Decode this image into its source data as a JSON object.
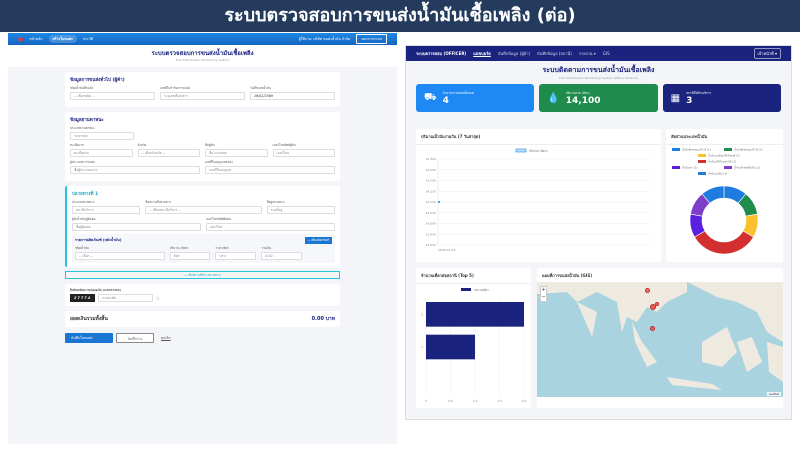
{
  "slide": {
    "title": "ระบบตรวจสอบการขนส่งน้ำมันเชื้อเพลิง (ต่อ)"
  },
  "left": {
    "nav": {
      "items": [
        "หน้าหลัก",
        "สร้างใบขนส่ง",
        "ประวัติ"
      ],
      "user": "ผู้ใช้งาน: บริษัท ขนส่งน้ำมัน จำกัด",
      "logout": "ออกจากระบบ"
    },
    "header": {
      "title": "ระบบตรวจสอบการขนส่งน้ำมันเชื้อเพลิง",
      "subtitle": "Fuel Distribution Monitoring System"
    },
    "sec1": {
      "title": "ข้อมูลการขนส่งทั่วไป (ผู้ค้า)",
      "f1_label": "ชนิดน้ำมันที่ขนส่ง",
      "f1_value": "-- เลือกชนิด --",
      "f2_label": "เลขที่ใบกำกับการขนส่ง",
      "f2_ph": "ระบุเลขที่เอกสาร",
      "f3_label": "วันที่ขนส่งน้ำมัน",
      "f3_value": "26/02/2569"
    },
    "sec2": {
      "title": "ข้อมูลยานพาหนะ",
      "type_label": "ประเภทยานพาหนะ",
      "type_value": "รถบรรทุก",
      "plate_label": "ทะเบียนรถ",
      "plate_ph": "ทะเบียนรถ",
      "prov_label": "จังหวัด",
      "prov_value": "-- เลือกจังหวัด --",
      "driver_label": "ชื่อผู้ขับ",
      "driver_ph": "ชื่อ-นามสกุล",
      "phone_label": "เบอร์โทรศัพท์ผู้ขับ",
      "phone_ph": "เบอร์โทร",
      "owner_label": "ผู้ประกอบการขนส่ง",
      "owner_ph": "ชื่อผู้ประกอบการ",
      "lic_label": "เลขที่ใบอนุญาตขนส่ง",
      "lic_ph": "เลขที่ใบอนุญาต"
    },
    "sec3": {
      "title": "ปลายทางที่ 1",
      "dtype_label": "ประเภทปลายทาง",
      "dtype_value": "สถานีบริการ",
      "dname_label": "ชื่อสถานที่ปลายทาง",
      "dname_value": "-- เลือกสถานีบริการ --",
      "addr_label": "ที่อยู่ปลายทาง",
      "addr_ph": "ระบุที่อยู่",
      "recv_label": "ผู้รับน้ำมัน/ผู้ติดต่อ",
      "recv_ph": "ชื่อผู้ติดต่อ",
      "rphone_label": "เบอร์โทรศัพท์ติดต่อ",
      "rphone_ph": "เบอร์โทร",
      "sub_title": "รายการผลิตภัณฑ์ (หลังน้ำมัน)",
      "add_product": "+ เพิ่มผลิตภัณฑ์",
      "p1": "ชนิดน้ำมัน",
      "p1v": "-- เลือก --",
      "p2": "ปริมาณ (ลิตร)",
      "p2v": "ลิตร",
      "p3": "ราคา/ลิตร",
      "p3v": "บาท",
      "p4": "รวมเงิน",
      "p4v": "0.00"
    },
    "add_dest": "+ เพิ่มสถานที่ส่ง (ปลายทาง)",
    "captcha": {
      "label": "ยืนยันรหัสความปลอดภัย (CAPTCHA)",
      "code": "27774",
      "ph": "กรอกรหัส",
      "refresh": "↻"
    },
    "total": {
      "label": "ยอดเงินรวมทั้งสิ้น",
      "value": "0.00 บาท"
    },
    "buttons": {
      "submit": "บันทึกใบขนส่ง",
      "draft": "บันทึกร่าง",
      "cancel": "ยกเลิก"
    }
  },
  "right": {
    "nav": {
      "brand": "ระบบตรวจสอบ (OFFICER)",
      "items": [
        "แดชบอร์ด",
        "บันทึกข้อมูล (ผู้ค้า)",
        "บันทึกข้อมูล (สถานี)",
        "รายงาน ▾",
        "GIS"
      ],
      "user": "เจ้าหน้าที่ ▾"
    },
    "header": {
      "title": "ระบบติดตามการขนส่งน้ำมันเชื้อเพลิง",
      "subtitle": "Fuel Distribution Monitoring System (Officer Module)"
    },
    "stats": [
      {
        "label": "จำนวนการขนส่งทั้งหมด",
        "value": "4",
        "icon": "truck-icon",
        "color": "#1e88f5"
      },
      {
        "label": "ปริมาณรวม (ลิตร)",
        "value": "14,100",
        "icon": "droplet-icon",
        "color": "#1f8b4c"
      },
      {
        "label": "สถานีที่ได้รับบริการ",
        "value": "3",
        "icon": "building-icon",
        "color": "#1a237e"
      }
    ],
    "panels": {
      "line": "ปริมาณน้ำมันรายวัน (7 วันล่าสุด)",
      "donut": "สัดส่วนประเภทน้ำมัน",
      "bar": "จำนวนเที่ยวต่อสถานี (Top 5)",
      "map": "แผนที่การขนส่งน้ำมัน (GIS)",
      "map_attr": "Leaflet",
      "zoom_in": "+",
      "zoom_out": "−"
    }
  },
  "chart_data": [
    {
      "type": "line",
      "title": "ปริมาณน้ำมันรายวัน (7 วันล่าสุด)",
      "series": [
        {
          "name": "ปริมาณ (ลิตร)",
          "x": [
            "2026-01-23"
          ],
          "values": [
            14100
          ]
        }
      ],
      "yticks": [
        "14,300",
        "14,250",
        "14,200",
        "14,150",
        "14,100",
        "14,050",
        "14,000",
        "13,950",
        "13,900"
      ],
      "ylim": [
        13900,
        14300
      ],
      "grid": true,
      "legend": "top",
      "color": "#1e88e5"
    },
    {
      "type": "pie",
      "donut": true,
      "title": "สัดส่วนประเภทน้ำมัน",
      "labels": [
        "น้ำมันดีเซลหมุนเร็ว B (1)",
        "น้ำมันดีเซลหมุนเร็ว B (1)",
        "น้ำมันเบนซินแก๊สโซฮอล์ (1)",
        "น้ำมันแก๊สโซฮอล์ 95 (3)",
        "น้ำมันเตา (1)",
        "น้ำมันก๊าดเครื่องบิน (1)",
        "น้ำมันเบนซิน (1)"
      ],
      "values": [
        1,
        1,
        1,
        3,
        1,
        1,
        1
      ],
      "colors": [
        "#1e7be0",
        "#1f8b4c",
        "#fbc02d",
        "#d32f2f",
        "#5b1fe0",
        "#7e3fc8",
        "#1e7be0"
      ],
      "legend": "top"
    },
    {
      "type": "bar",
      "orientation": "horizontal",
      "title": "จำนวนเที่ยวต่อสถานี (Top 5)",
      "categories": [
        "2",
        "1"
      ],
      "series": [
        {
          "name": "จำนวนเที่ยว",
          "values": [
            2,
            1
          ]
        }
      ],
      "xticks": [
        "0",
        "0.5",
        "1.0",
        "1.5",
        "2.0"
      ],
      "xlim": [
        0,
        2
      ],
      "color": "#1a237e",
      "legend": "top",
      "grid": true
    }
  ]
}
